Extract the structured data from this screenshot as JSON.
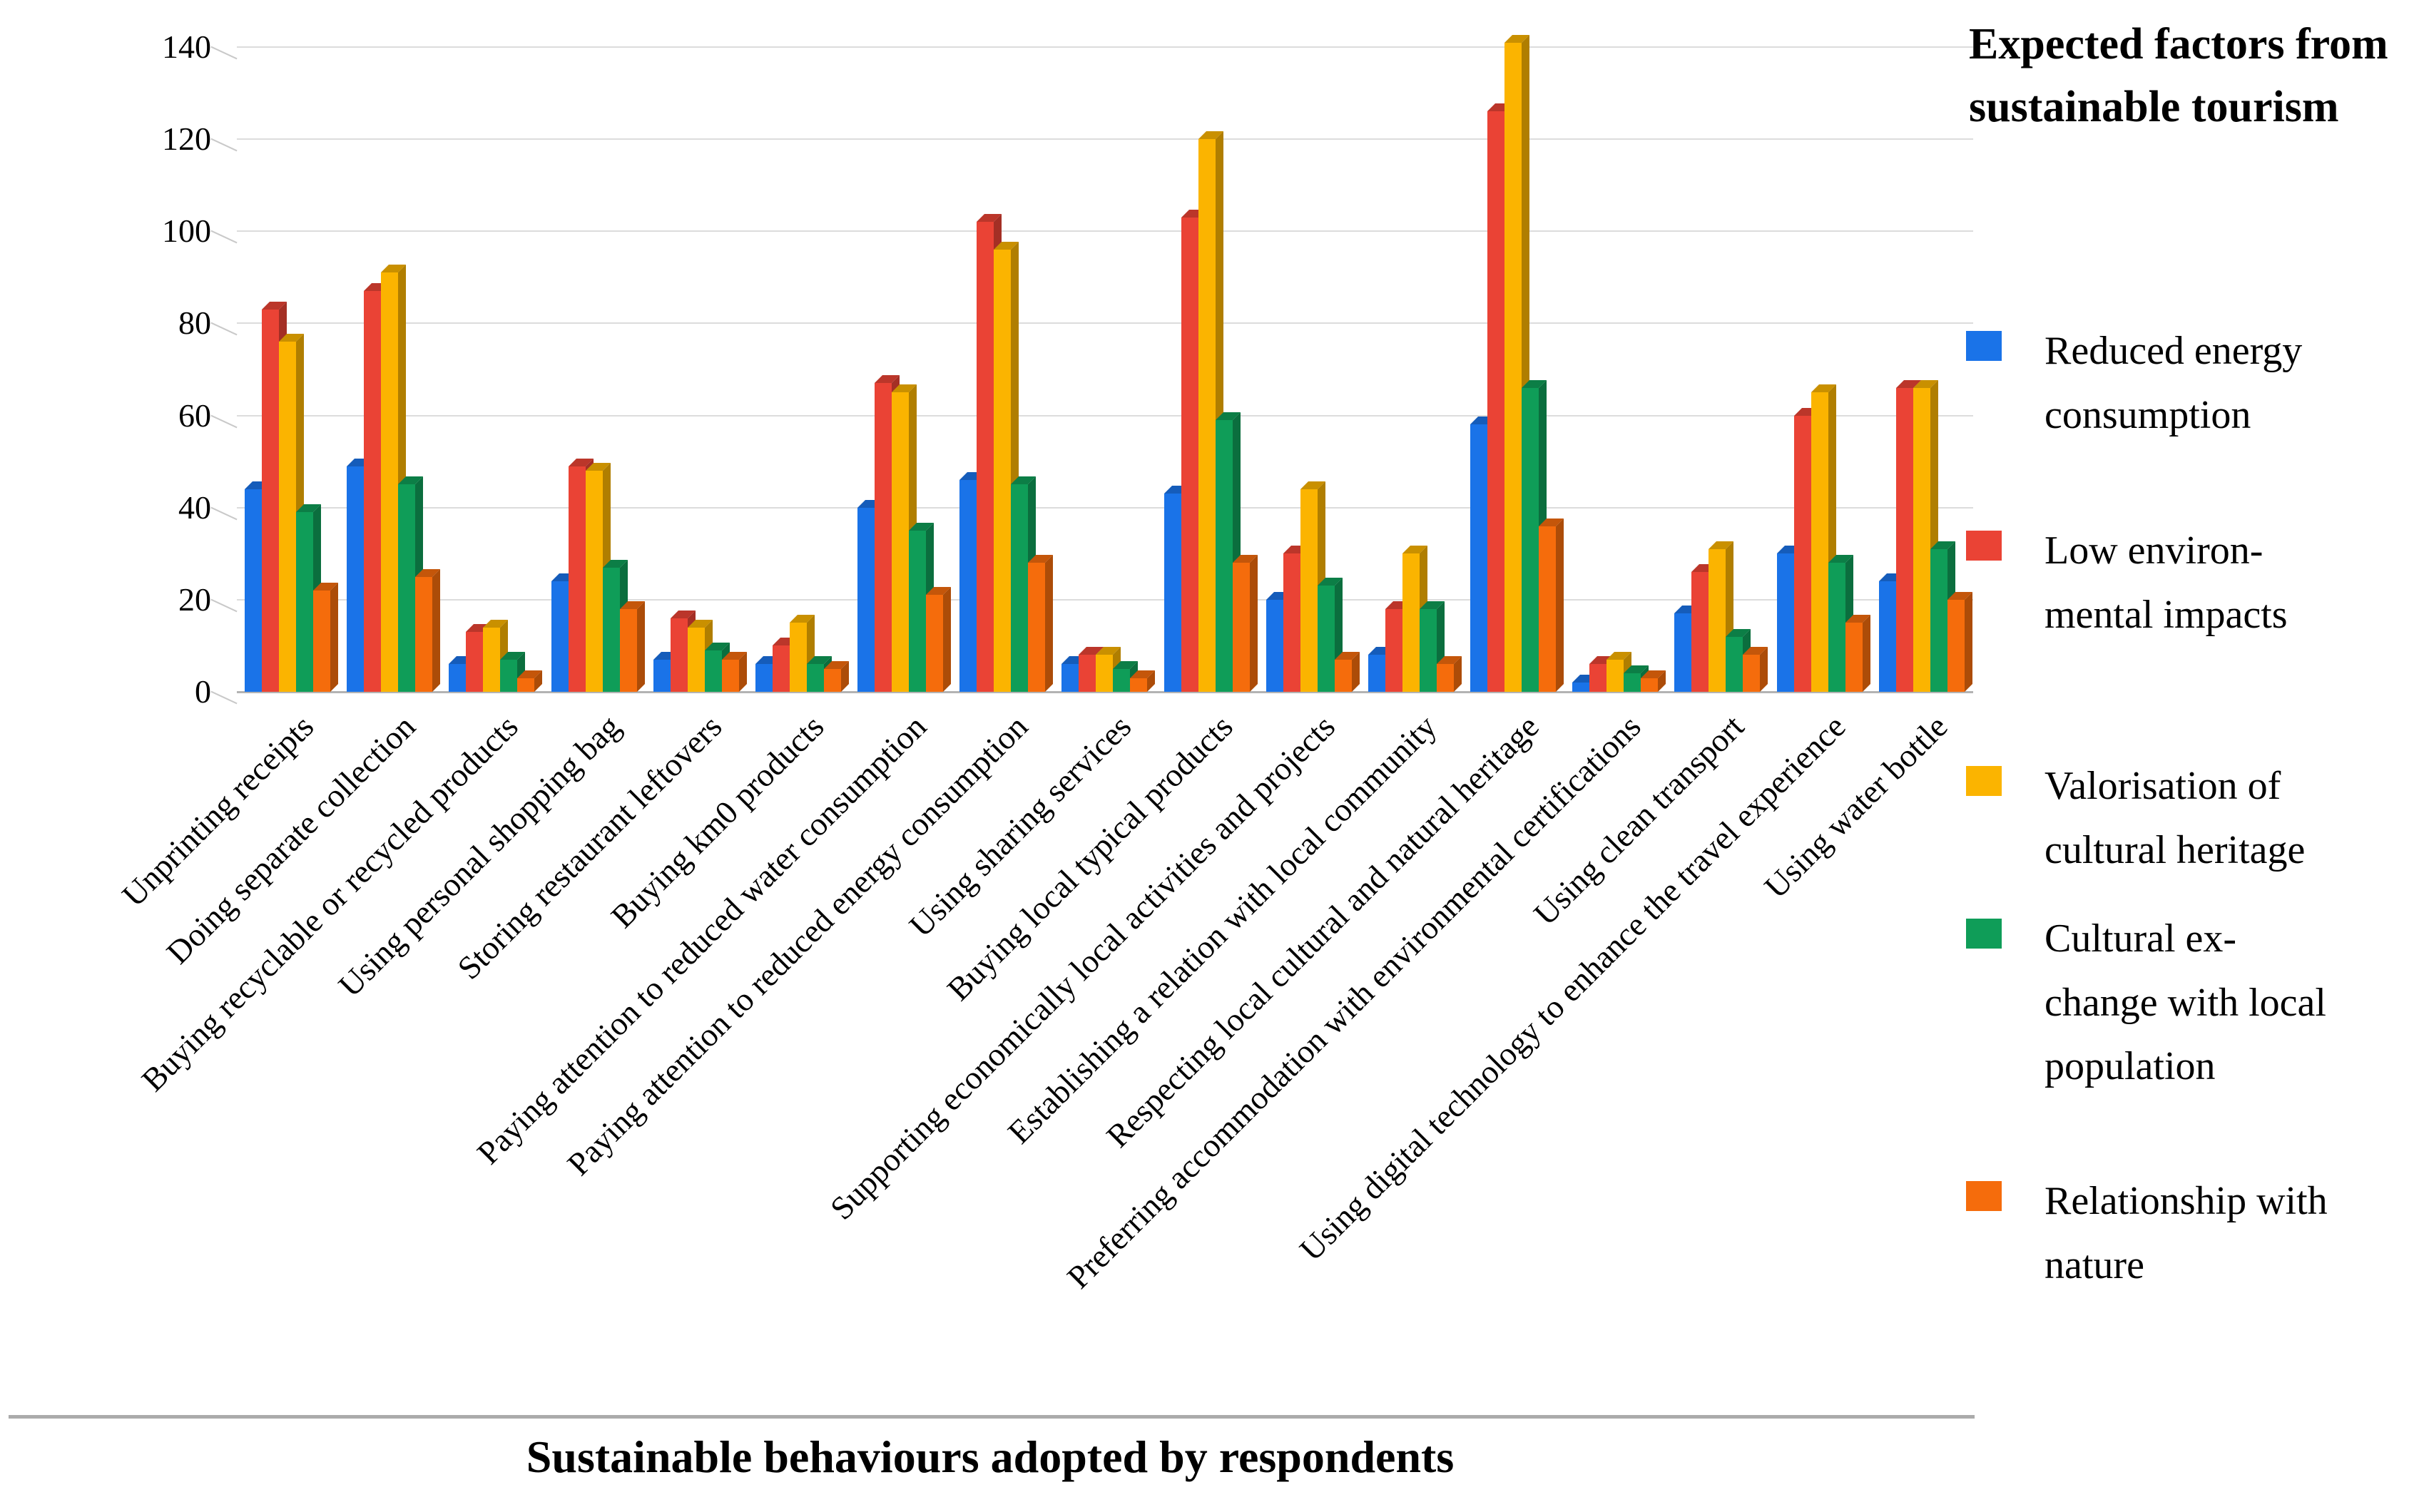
{
  "chart_data": {
    "type": "bar",
    "title": "",
    "xlabel": "Sustainable behaviours adopted by respondents",
    "ylabel": "",
    "legend_title": "Expected factors from sustainable tourism",
    "legend_position": "right",
    "ylim": [
      0,
      140
    ],
    "y_ticks": [
      0,
      20,
      40,
      60,
      80,
      100,
      120,
      140
    ],
    "grid": true,
    "categories": [
      "Unprinting receipts",
      "Doing separate collection",
      "Buying recyclable or recycled products",
      "Using personal shopping bag",
      "Storing restaurant leftovers",
      "Buying km0 products",
      "Paying attention to reduced water consumption",
      "Paying attention to reduced energy consumption",
      "Using sharing services",
      "Buying local typical products",
      "Supporting economically local activities and projects",
      "Establishing a relation with local community",
      "Respecting local cultural and natural heritage",
      "Preferring accommodation with environmental certifications",
      "Using clean transport",
      "Using digital technology to enhance the travel experience",
      "Using water bottle"
    ],
    "series": [
      {
        "name": "Reduced energy consumption",
        "label_display": "Reduced energy\nconsumption",
        "color": "#1A73E8",
        "values": [
          44,
          49,
          6,
          24,
          7,
          6,
          40,
          46,
          6,
          43,
          20,
          8,
          58,
          2,
          17,
          30,
          24
        ]
      },
      {
        "name": "Low environmental impacts",
        "label_display": "Low environ-\nmental impacts",
        "color": "#EA4335",
        "values": [
          83,
          87,
          13,
          49,
          16,
          10,
          67,
          102,
          8,
          103,
          30,
          18,
          126,
          6,
          26,
          60,
          66
        ]
      },
      {
        "name": "Valorisation of cultural heritage",
        "label_display": "Valorisation of\ncultural heritage",
        "color": "#FBB400",
        "values": [
          76,
          91,
          14,
          48,
          14,
          15,
          65,
          96,
          8,
          120,
          44,
          30,
          141,
          7,
          31,
          65,
          66
        ]
      },
      {
        "name": "Cultural exchange with local population",
        "label_display": "Cultural ex-\nchange with local\npopulation",
        "color": "#0F9D58",
        "values": [
          39,
          45,
          7,
          27,
          9,
          6,
          35,
          45,
          5,
          59,
          23,
          18,
          66,
          4,
          12,
          28,
          31
        ]
      },
      {
        "name": "Relationship with nature",
        "label_display": "Relationship with\nnature",
        "color": "#F56C0C",
        "values": [
          22,
          25,
          3,
          18,
          7,
          5,
          21,
          28,
          3,
          28,
          7,
          6,
          36,
          3,
          8,
          15,
          20
        ]
      }
    ]
  }
}
